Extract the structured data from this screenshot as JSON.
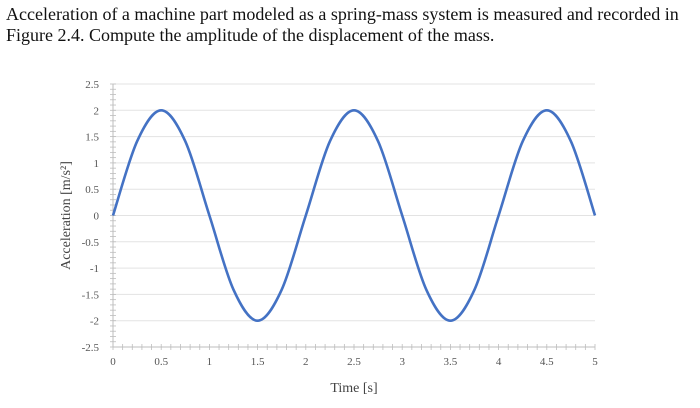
{
  "question": {
    "text": "Acceleration of a machine part modeled as a spring-mass system is measured and recorded in Figure 2.4. Compute the amplitude of the displacement of the mass."
  },
  "chart_data": {
    "type": "line",
    "title": "",
    "xlabel": "Time [s]",
    "ylabel": "Acceleration [m/s²]",
    "xlim": [
      0,
      5
    ],
    "ylim": [
      -2.5,
      2.5
    ],
    "x_ticks": [
      "0",
      "0.5",
      "1",
      "1.5",
      "2",
      "2.5",
      "3",
      "3.5",
      "4",
      "4.5",
      "5"
    ],
    "y_ticks": [
      "2.5",
      "2",
      "1.5",
      "1",
      "0.5",
      "0",
      "-0.5",
      "-1",
      "-1.5",
      "-2",
      "-2.5"
    ],
    "grid": true,
    "line_color": "#4472C4",
    "series": [
      {
        "x": [
          0,
          0.25,
          0.5,
          0.75,
          1,
          1.25,
          1.5,
          1.75,
          2,
          2.25,
          2.5,
          2.75,
          3,
          3.25,
          3.5,
          3.75,
          4,
          4.25,
          4.5,
          4.75,
          5
        ],
        "values": [
          0,
          1.41,
          2,
          1.41,
          0,
          -1.41,
          -2,
          -1.41,
          0,
          1.41,
          2,
          1.41,
          0,
          -1.41,
          -2,
          -1.41,
          0,
          1.41,
          2,
          1.41,
          0
        ]
      }
    ]
  }
}
